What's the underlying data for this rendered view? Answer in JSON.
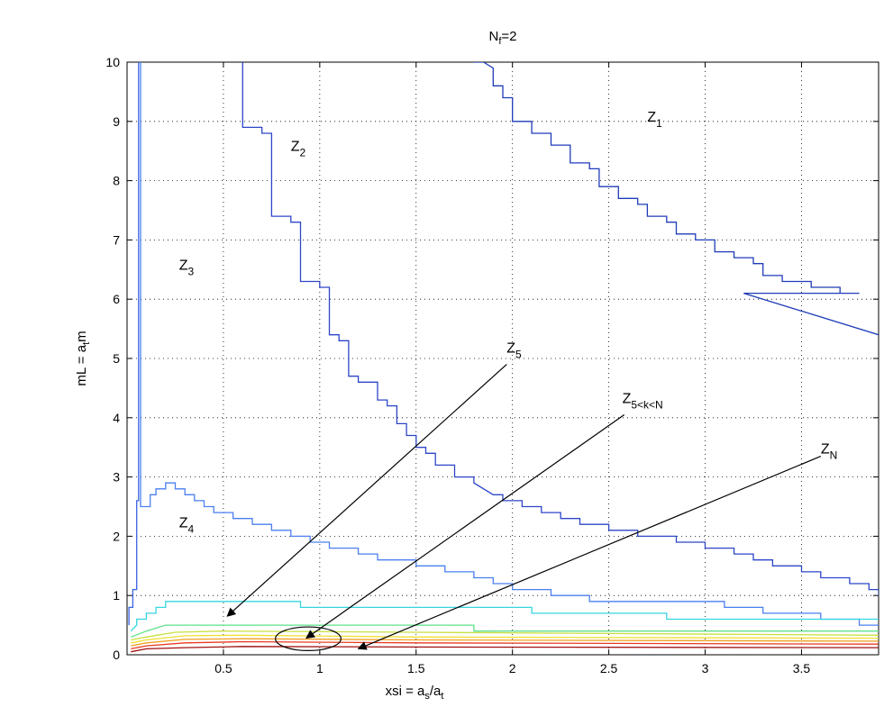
{
  "chart_data": {
    "type": "line",
    "title": "N_f=2",
    "title_parts": {
      "base": "N",
      "sub": "f",
      "rest": "=2"
    },
    "xlabel": "xsi = a_s/a_t",
    "xlabel_parts": {
      "a": "xsi = a",
      "s": "s",
      "mid": "/a",
      "t": "t"
    },
    "ylabel": "mL = a_t m",
    "ylabel_parts": {
      "a": "mL = a",
      "t": "t",
      "b": "m"
    },
    "xlim": [
      0,
      3.9
    ],
    "ylim": [
      0,
      10
    ],
    "grid": true,
    "xticks": [
      0.5,
      1,
      1.5,
      2,
      2.5,
      3,
      3.5
    ],
    "xtick_labels": [
      "0.5",
      "1",
      "1.5",
      "2",
      "2.5",
      "3",
      "3.5"
    ],
    "yticks": [
      0,
      1,
      2,
      3,
      4,
      5,
      6,
      7,
      8,
      9,
      10
    ],
    "ytick_labels": [
      "0",
      "1",
      "2",
      "3",
      "4",
      "5",
      "6",
      "7",
      "8",
      "9",
      "10"
    ],
    "series": [
      {
        "color": "#1f3cb8",
        "values": [
          [
            1.8,
            10
          ],
          [
            1.85,
            10
          ],
          [
            1.9,
            9.9
          ],
          [
            1.9,
            9.6
          ],
          [
            1.95,
            9.6
          ],
          [
            1.95,
            9.4
          ],
          [
            2.0,
            9.4
          ],
          [
            2.0,
            9.0
          ],
          [
            2.1,
            9.0
          ],
          [
            2.1,
            8.8
          ],
          [
            2.2,
            8.8
          ],
          [
            2.2,
            8.6
          ],
          [
            2.3,
            8.6
          ],
          [
            2.3,
            8.3
          ],
          [
            2.4,
            8.3
          ],
          [
            2.4,
            8.2
          ],
          [
            2.45,
            8.2
          ],
          [
            2.45,
            7.9
          ],
          [
            2.55,
            7.9
          ],
          [
            2.55,
            7.7
          ],
          [
            2.65,
            7.7
          ],
          [
            2.65,
            7.6
          ],
          [
            2.7,
            7.6
          ],
          [
            2.7,
            7.4
          ],
          [
            2.8,
            7.4
          ],
          [
            2.8,
            7.3
          ],
          [
            2.85,
            7.3
          ],
          [
            2.85,
            7.1
          ],
          [
            2.95,
            7.1
          ],
          [
            2.95,
            7.0
          ],
          [
            3.05,
            7.0
          ],
          [
            3.05,
            6.8
          ],
          [
            3.15,
            6.8
          ],
          [
            3.15,
            6.7
          ],
          [
            3.25,
            6.7
          ],
          [
            3.25,
            6.6
          ],
          [
            3.3,
            6.6
          ],
          [
            3.3,
            6.4
          ],
          [
            3.4,
            6.4
          ],
          [
            3.4,
            6.3
          ],
          [
            3.55,
            6.3
          ],
          [
            3.55,
            6.2
          ],
          [
            3.7,
            6.2
          ],
          [
            3.7,
            6.1
          ],
          [
            3.8,
            6.1
          ],
          [
            3.8,
            6.1
          ],
          [
            3.2,
            6.1
          ],
          [
            3.9,
            5.4
          ]
        ]
      },
      {
        "color": "#2d46c8",
        "values": [
          [
            0.6,
            10
          ],
          [
            0.6,
            8.9
          ],
          [
            0.7,
            8.9
          ],
          [
            0.7,
            8.8
          ],
          [
            0.75,
            8.8
          ],
          [
            0.75,
            7.4
          ],
          [
            0.85,
            7.4
          ],
          [
            0.85,
            7.3
          ],
          [
            0.9,
            7.3
          ],
          [
            0.9,
            6.3
          ],
          [
            1.0,
            6.3
          ],
          [
            1.0,
            6.2
          ],
          [
            1.05,
            6.2
          ],
          [
            1.05,
            5.4
          ],
          [
            1.1,
            5.4
          ],
          [
            1.1,
            5.3
          ],
          [
            1.15,
            5.3
          ],
          [
            1.15,
            4.7
          ],
          [
            1.2,
            4.7
          ],
          [
            1.2,
            4.6
          ],
          [
            1.3,
            4.6
          ],
          [
            1.3,
            4.3
          ],
          [
            1.35,
            4.3
          ],
          [
            1.35,
            4.2
          ],
          [
            1.4,
            4.2
          ],
          [
            1.4,
            3.9
          ],
          [
            1.45,
            3.9
          ],
          [
            1.45,
            3.7
          ],
          [
            1.5,
            3.7
          ],
          [
            1.5,
            3.5
          ],
          [
            1.55,
            3.5
          ],
          [
            1.55,
            3.4
          ],
          [
            1.6,
            3.4
          ],
          [
            1.6,
            3.2
          ],
          [
            1.7,
            3.2
          ],
          [
            1.7,
            3.0
          ],
          [
            1.8,
            3.0
          ],
          [
            1.8,
            2.9
          ],
          [
            1.9,
            2.7
          ],
          [
            1.95,
            2.7
          ],
          [
            1.95,
            2.6
          ],
          [
            2.05,
            2.6
          ],
          [
            2.05,
            2.5
          ],
          [
            2.15,
            2.5
          ],
          [
            2.15,
            2.4
          ],
          [
            2.25,
            2.4
          ],
          [
            2.25,
            2.3
          ],
          [
            2.35,
            2.3
          ],
          [
            2.35,
            2.2
          ],
          [
            2.5,
            2.2
          ],
          [
            2.5,
            2.1
          ],
          [
            2.65,
            2.1
          ],
          [
            2.65,
            2.0
          ],
          [
            2.85,
            2.0
          ],
          [
            2.85,
            1.9
          ],
          [
            3.0,
            1.9
          ],
          [
            3.0,
            1.8
          ],
          [
            3.15,
            1.8
          ],
          [
            3.15,
            1.7
          ],
          [
            3.25,
            1.7
          ],
          [
            3.25,
            1.6
          ],
          [
            3.35,
            1.6
          ],
          [
            3.35,
            1.5
          ],
          [
            3.5,
            1.5
          ],
          [
            3.5,
            1.4
          ],
          [
            3.6,
            1.4
          ],
          [
            3.6,
            1.3
          ],
          [
            3.75,
            1.3
          ],
          [
            3.75,
            1.2
          ],
          [
            3.85,
            1.2
          ],
          [
            3.85,
            1.1
          ],
          [
            3.9,
            1.1
          ],
          [
            3.9,
            1.0
          ]
        ]
      },
      {
        "color": "#3a64e0",
        "values": [
          [
            0.06,
            10
          ],
          [
            0.06,
            2.6
          ],
          [
            0.05,
            2.6
          ],
          [
            0.05,
            1.1
          ],
          [
            0.03,
            1.1
          ],
          [
            0.03,
            0.8
          ],
          [
            0.01,
            0.8
          ],
          [
            0.01,
            0.5
          ]
        ]
      },
      {
        "color": "#4a7ff0",
        "values": [
          [
            0.07,
            10
          ],
          [
            0.07,
            2.5
          ],
          [
            0.12,
            2.5
          ],
          [
            0.12,
            2.7
          ],
          [
            0.15,
            2.7
          ],
          [
            0.15,
            2.8
          ],
          [
            0.2,
            2.8
          ],
          [
            0.2,
            2.9
          ],
          [
            0.25,
            2.9
          ],
          [
            0.25,
            2.8
          ],
          [
            0.3,
            2.8
          ],
          [
            0.3,
            2.7
          ],
          [
            0.35,
            2.7
          ],
          [
            0.35,
            2.6
          ],
          [
            0.4,
            2.6
          ],
          [
            0.4,
            2.5
          ],
          [
            0.45,
            2.5
          ],
          [
            0.45,
            2.4
          ],
          [
            0.55,
            2.4
          ],
          [
            0.55,
            2.3
          ],
          [
            0.65,
            2.3
          ],
          [
            0.65,
            2.2
          ],
          [
            0.75,
            2.2
          ],
          [
            0.75,
            2.1
          ],
          [
            0.85,
            2.1
          ],
          [
            0.85,
            2.0
          ],
          [
            0.95,
            2.0
          ],
          [
            0.95,
            1.9
          ],
          [
            1.05,
            1.9
          ],
          [
            1.05,
            1.8
          ],
          [
            1.2,
            1.8
          ],
          [
            1.2,
            1.7
          ],
          [
            1.3,
            1.7
          ],
          [
            1.3,
            1.6
          ],
          [
            1.5,
            1.6
          ],
          [
            1.5,
            1.5
          ],
          [
            1.65,
            1.5
          ],
          [
            1.65,
            1.4
          ],
          [
            1.8,
            1.4
          ],
          [
            1.8,
            1.3
          ],
          [
            1.9,
            1.3
          ],
          [
            1.9,
            1.2
          ],
          [
            2.0,
            1.2
          ],
          [
            2.0,
            1.1
          ],
          [
            2.2,
            1.1
          ],
          [
            2.2,
            1.0
          ],
          [
            2.4,
            1.0
          ],
          [
            2.4,
            0.9
          ],
          [
            3.1,
            0.9
          ],
          [
            3.1,
            0.8
          ],
          [
            3.3,
            0.8
          ],
          [
            3.3,
            0.7
          ],
          [
            3.6,
            0.7
          ],
          [
            3.6,
            0.6
          ],
          [
            3.8,
            0.6
          ],
          [
            3.8,
            0.5
          ],
          [
            3.9,
            0.5
          ]
        ]
      },
      {
        "color": "#33d6e0",
        "values": [
          [
            0.02,
            0.4
          ],
          [
            0.05,
            0.5
          ],
          [
            0.05,
            0.6
          ],
          [
            0.1,
            0.6
          ],
          [
            0.1,
            0.7
          ],
          [
            0.15,
            0.7
          ],
          [
            0.15,
            0.8
          ],
          [
            0.2,
            0.8
          ],
          [
            0.2,
            0.9
          ],
          [
            0.3,
            0.9
          ],
          [
            0.3,
            0.9
          ],
          [
            0.9,
            0.9
          ],
          [
            0.9,
            0.8
          ],
          [
            1.3,
            0.8
          ],
          [
            1.3,
            0.8
          ],
          [
            2.1,
            0.8
          ],
          [
            2.1,
            0.7
          ],
          [
            2.8,
            0.7
          ],
          [
            2.8,
            0.6
          ],
          [
            3.9,
            0.6
          ]
        ]
      },
      {
        "color": "#5fe08a",
        "values": [
          [
            0.02,
            0.3
          ],
          [
            0.1,
            0.4
          ],
          [
            0.2,
            0.5
          ],
          [
            1.8,
            0.5
          ],
          [
            1.8,
            0.4
          ],
          [
            3.9,
            0.4
          ]
        ]
      },
      {
        "color": "#c8e040",
        "values": [
          [
            0.02,
            0.25
          ],
          [
            0.1,
            0.3
          ],
          [
            0.25,
            0.38
          ],
          [
            0.5,
            0.4
          ],
          [
            1.5,
            0.38
          ],
          [
            3.9,
            0.33
          ]
        ]
      },
      {
        "color": "#f0e030",
        "values": [
          [
            0.02,
            0.2
          ],
          [
            0.1,
            0.25
          ],
          [
            0.3,
            0.32
          ],
          [
            0.6,
            0.33
          ],
          [
            1.5,
            0.3
          ],
          [
            3.9,
            0.28
          ]
        ]
      },
      {
        "color": "#f0a020",
        "values": [
          [
            0.02,
            0.15
          ],
          [
            0.1,
            0.2
          ],
          [
            0.3,
            0.26
          ],
          [
            0.6,
            0.27
          ],
          [
            1.5,
            0.25
          ],
          [
            3.9,
            0.23
          ]
        ]
      },
      {
        "color": "#e83a20",
        "values": [
          [
            0.02,
            0.1
          ],
          [
            0.1,
            0.15
          ],
          [
            0.3,
            0.2
          ],
          [
            0.6,
            0.22
          ],
          [
            1.5,
            0.2
          ],
          [
            3.9,
            0.18
          ]
        ]
      },
      {
        "color": "#a01010",
        "values": [
          [
            0.02,
            0.05
          ],
          [
            0.1,
            0.1
          ],
          [
            0.3,
            0.12
          ],
          [
            0.6,
            0.14
          ],
          [
            1.5,
            0.13
          ],
          [
            3.9,
            0.12
          ]
        ]
      }
    ],
    "annotations": [
      {
        "base": "Z",
        "sub": "1",
        "x": 2.7,
        "y": 9.0
      },
      {
        "base": "Z",
        "sub": "2",
        "x": 0.85,
        "y": 8.5
      },
      {
        "base": "Z",
        "sub": "3",
        "x": 0.27,
        "y": 6.5
      },
      {
        "base": "Z",
        "sub": "4",
        "x": 0.27,
        "y": 2.15
      },
      {
        "base": "Z",
        "sub": "5",
        "x": 1.97,
        "y": 5.1
      },
      {
        "base": "Z",
        "sub": "5<k<N",
        "x": 2.57,
        "y": 4.25
      },
      {
        "base": "Z",
        "sub": "N",
        "x": 3.6,
        "y": 3.4
      }
    ],
    "arrows": [
      {
        "from": [
          1.97,
          4.9
        ],
        "to": [
          0.52,
          0.65
        ]
      },
      {
        "from": [
          2.58,
          4.05
        ],
        "to": [
          0.93,
          0.28
        ]
      },
      {
        "from": [
          3.6,
          3.35
        ],
        "to": [
          1.2,
          0.1
        ]
      }
    ],
    "ellipse": {
      "cx": 0.94,
      "cy": 0.27,
      "rx": 0.17,
      "ry": 0.2
    }
  }
}
